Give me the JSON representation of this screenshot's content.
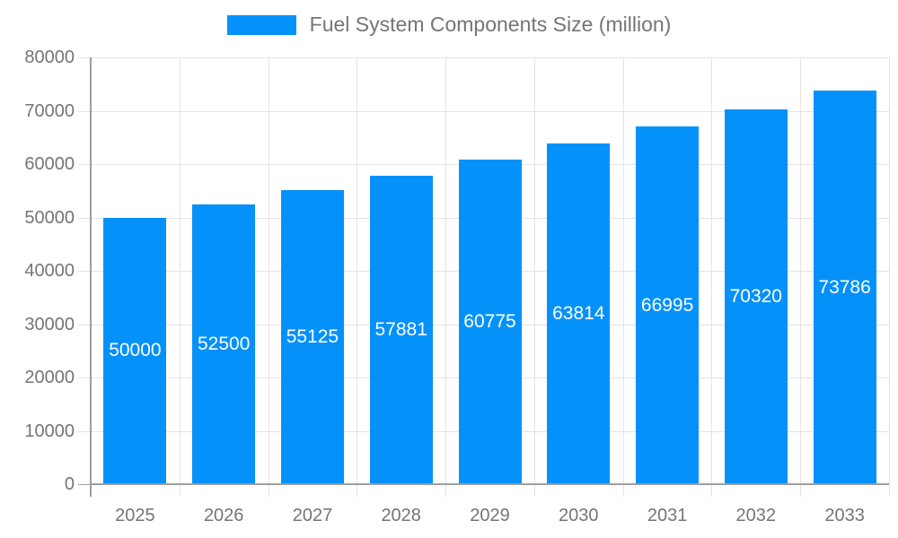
{
  "chart_data": {
    "type": "bar",
    "title": "Fuel System Components Size (million)",
    "categories": [
      "2025",
      "2026",
      "2027",
      "2028",
      "2029",
      "2030",
      "2031",
      "2032",
      "2033"
    ],
    "series": [
      {
        "name": "Fuel System Components Size (million)",
        "values": [
          50000,
          52500,
          55125,
          57881,
          60775,
          63814,
          66995,
          70320,
          73786
        ]
      }
    ],
    "xlabel": "",
    "ylabel": "",
    "ylim": [
      0,
      80000
    ],
    "ytick_step": 10000,
    "ytick_labels": [
      "0",
      "10000",
      "20000",
      "30000",
      "40000",
      "50000",
      "60000",
      "70000",
      "80000"
    ],
    "grid": true,
    "legend_position": "top-center",
    "bar_labels_visible": true,
    "colors": {
      "bar": "#0591FA",
      "bar_label": "#FFFFFF",
      "axis_text": "#757575",
      "legend_text": "#757575",
      "gridline": "#E3E3E3",
      "axis_line": "#9E9E9E"
    }
  }
}
